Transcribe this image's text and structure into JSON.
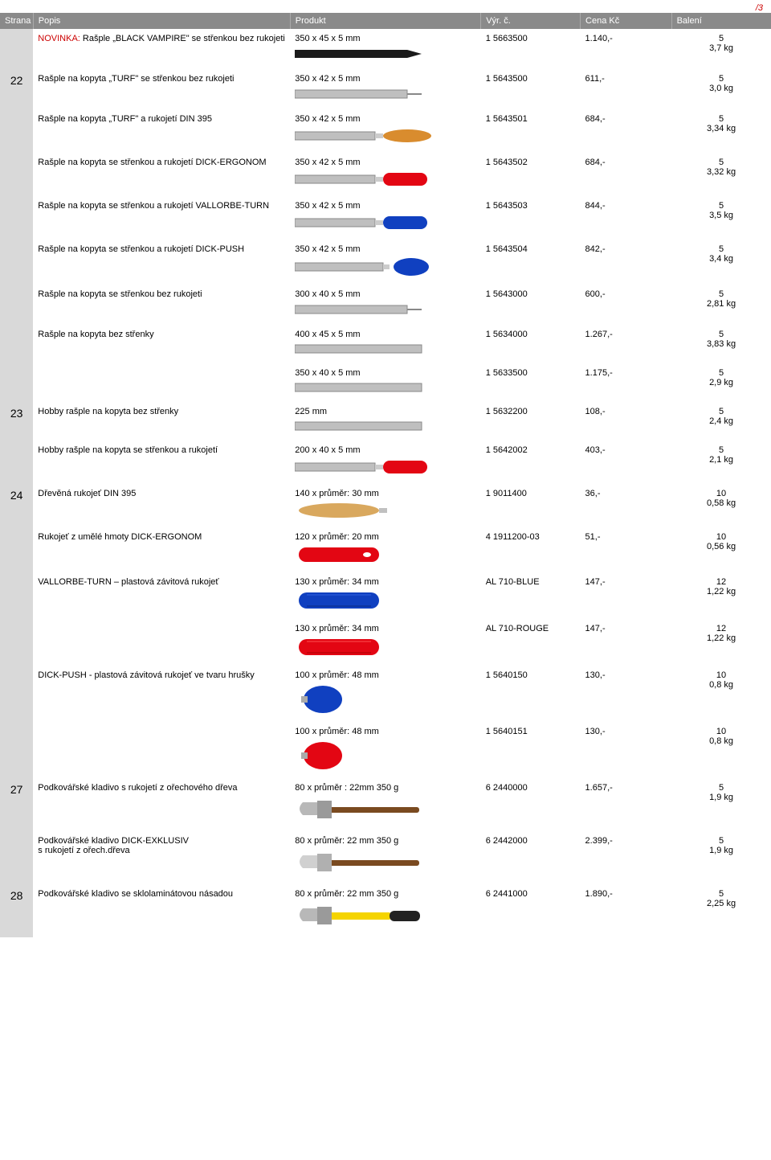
{
  "page_number": "/3",
  "headers": {
    "strana": "Strana",
    "popis": "Popis",
    "produkt": "Produkt",
    "code": "Výr. č.",
    "price": "Cena Kč",
    "pack": "Balení"
  },
  "rows": [
    {
      "page": "",
      "page_blank": true,
      "desc_prefix": "NOVINKA:",
      "desc": " Rašple „BLACK VAMPIRE\" se střenkou bez rukojeti",
      "prod": "350 x 45 x 5 mm",
      "code": "1 5663500",
      "price": "1.140,-",
      "pack1": "5",
      "pack2": "3,7 kg",
      "img": "black-file"
    },
    {
      "page": "22",
      "desc": "Rašple na kopyta „TURF\" se střenkou bez rukojeti",
      "prod": "350 x 42 x 5 mm",
      "code": "1 5643500",
      "price": "611,-",
      "pack1": "5",
      "pack2": "3,0 kg",
      "img": "gray-file"
    },
    {
      "page": "",
      "desc": "Rašple na kopyta „TURF\" a rukojetí DIN 395",
      "prod": "350 x 42 x 5 mm",
      "code": "1 5643501",
      "price": "684,-",
      "pack1": "5",
      "pack2": "3,34 kg",
      "img": "file-wood"
    },
    {
      "page": "",
      "desc": "Rašple na kopyta se střenkou a rukojetí DICK-ERGONOM",
      "prod": "350 x 42 x 5 mm",
      "code": "1 5643502",
      "price": "684,-",
      "pack1": "5",
      "pack2": "3,32 kg",
      "img": "file-red"
    },
    {
      "page": "",
      "desc": "Rašple na kopyta se střenkou a rukojetí VALLORBE-TURN",
      "prod": "350 x 42 x 5 mm",
      "code": "1 5643503",
      "price": "844,-",
      "pack1": "5",
      "pack2": "3,5 kg",
      "img": "file-blue"
    },
    {
      "page": "",
      "desc": "Rašple na kopyta se střenkou a rukojetí DICK-PUSH",
      "prod": "350 x 42 x 5 mm",
      "code": "1 5643504",
      "price": "842,-",
      "pack1": "5",
      "pack2": "3,4 kg",
      "img": "file-blue-pear"
    },
    {
      "page": "",
      "desc": "Rašple na kopyta se střenkou bez rukojeti",
      "prod": "300 x 40 x 5 mm",
      "code": "1 5643000",
      "price": "600,-",
      "pack1": "5",
      "pack2": "2,81 kg",
      "img": "gray-file"
    },
    {
      "page": "",
      "desc": "Rašple na kopyta bez střenky",
      "prod": "400 x 45 x 5 mm",
      "code": "1 5634000",
      "price": "1.267,-",
      "pack1": "5",
      "pack2": "3,83 kg",
      "img": "gray-file-plain"
    },
    {
      "page": "",
      "desc": "",
      "prod": "350 x 40 x 5 mm",
      "code": "1 5633500",
      "price": "1.175,-",
      "pack1": "5",
      "pack2": "2,9 kg",
      "img": "gray-file-plain"
    },
    {
      "page": "23",
      "desc": "Hobby rašple na kopyta bez střenky",
      "prod": "225 mm",
      "code": "1 5632200",
      "price": "108,-",
      "pack1": "5",
      "pack2": "2,4 kg",
      "img": "gray-file-plain"
    },
    {
      "page": "",
      "desc": "Hobby rašple na kopyta se střenkou a rukojetí",
      "prod": "200 x 40 x 5 mm",
      "code": "1 5642002",
      "price": "403,-",
      "pack1": "5",
      "pack2": "2,1 kg",
      "img": "file-red"
    },
    {
      "page": "24",
      "desc": "Dřevěná rukojeť DIN 395",
      "prod": "140 x průměr: 30 mm",
      "code": "1 9011400",
      "price": "36,-",
      "pack1": "10",
      "pack2": "0,58 kg",
      "img": "wood-handle"
    },
    {
      "page": "",
      "desc": "Rukojeť z umělé hmoty DICK-ERGONOM",
      "prod": "120 x průměr: 20 mm",
      "code": "4 1911200-03",
      "price": "51,-",
      "pack1": "10",
      "pack2": "0,56 kg",
      "img": "red-handle"
    },
    {
      "page": "",
      "desc": "VALLORBE-TURN – plastová závitová rukojeť",
      "prod": "130 x průměr: 34 mm",
      "code": "AL 710-BLUE",
      "price": "147,-",
      "pack1": "12",
      "pack2": "1,22 kg",
      "img": "blue-handle"
    },
    {
      "page": "",
      "desc": "",
      "prod": "130 x průměr: 34 mm",
      "code": "AL 710-ROUGE",
      "price": "147,-",
      "pack1": "12",
      "pack2": "1,22 kg",
      "img": "rouge-handle"
    },
    {
      "page": "",
      "desc": "DICK-PUSH - plastová závitová rukojeť ve tvaru hrušky",
      "prod": "100 x průměr: 48 mm",
      "code": "1 5640150",
      "price": "130,-",
      "pack1": "10",
      "pack2": "0,8 kg",
      "img": "blue-pear"
    },
    {
      "page": "",
      "desc": "",
      "prod": "100 x průměr: 48 mm",
      "code": "1 5640151",
      "price": "130,-",
      "pack1": "10",
      "pack2": "0,8 kg",
      "img": "red-pear"
    },
    {
      "page": "27",
      "desc": "Podkovářské kladivo s rukojetí z ořechového dřeva",
      "prod": "80 x průměr : 22mm 350 g",
      "code": "6 2440000",
      "price": "1.657,-",
      "pack1": "5",
      "pack2": "1,9 kg",
      "img": "hammer-wood"
    },
    {
      "page": "",
      "desc": "Podkovářské kladivo DICK-EXKLUSIV\ns rukojetí z ořech.dřeva",
      "prod": "80 x průměr: 22 mm  350 g",
      "code": "6 2442000",
      "price": "2.399,-",
      "pack1": "5",
      "pack2": "1,9 kg",
      "img": "hammer-wood2"
    },
    {
      "page": "28",
      "desc": "Podkovářské kladivo se sklolaminátovou násadou",
      "prod": "80 x průměr: 22 mm  350 g",
      "code": "6 2441000",
      "price": "1.890,-",
      "pack1": "5",
      "pack2": "2,25 kg",
      "img": "hammer-yellow"
    }
  ]
}
